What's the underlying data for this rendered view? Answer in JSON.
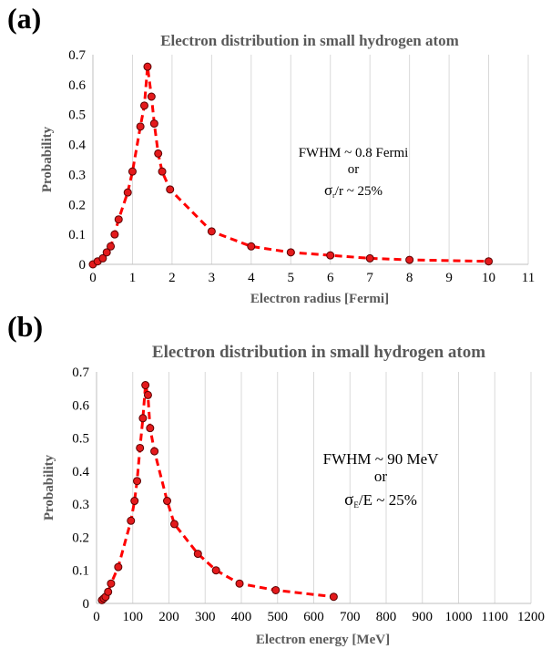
{
  "chart_data": [
    {
      "type": "scatter",
      "panel_label": "(a)",
      "title": "Electron distribution in small hydrogen atom",
      "xlabel": "Electron radius [Fermi]",
      "ylabel": "Probability",
      "xlim": [
        0,
        11
      ],
      "ylim": [
        0,
        0.7
      ],
      "xticks": [
        "0",
        "1",
        "2",
        "3",
        "4",
        "5",
        "6",
        "7",
        "8",
        "9",
        "10",
        "11"
      ],
      "yticks": [
        "0",
        "0.1",
        "0.2",
        "0.3",
        "0.4",
        "0.5",
        "0.6",
        "0.7"
      ],
      "grid": "vertical",
      "line_color": "#ff0000",
      "marker_color": "#e31a1c",
      "annotation": {
        "line1": "FWHM ~ 0.8 Fermi",
        "line2": "or",
        "line3_symbol": "σ",
        "line3_sub": "r",
        "line3_rest": "/r ~ 25%"
      },
      "series": [
        {
          "x": [
            0.0,
            0.12,
            0.25,
            0.35,
            0.45,
            0.55,
            0.65,
            0.88,
            1.0,
            1.2,
            1.3,
            1.38,
            1.48,
            1.55,
            1.65,
            1.75,
            1.95,
            3.0,
            4.0,
            5.0,
            6.0,
            7.0,
            8.0,
            10.0
          ],
          "y": [
            0.0,
            0.01,
            0.02,
            0.04,
            0.06,
            0.1,
            0.15,
            0.24,
            0.31,
            0.46,
            0.53,
            0.66,
            0.56,
            0.47,
            0.37,
            0.31,
            0.25,
            0.11,
            0.06,
            0.04,
            0.03,
            0.02,
            0.015,
            0.01
          ]
        }
      ]
    },
    {
      "type": "scatter",
      "panel_label": "(b)",
      "title": "Electron distribution in small hydrogen atom",
      "xlabel": "Electron energy [MeV]",
      "ylabel": "Probability",
      "xlim": [
        0,
        1200
      ],
      "ylim": [
        0,
        0.7
      ],
      "xticks": [
        "0",
        "100",
        "200",
        "300",
        "400",
        "500",
        "600",
        "700",
        "800",
        "900",
        "1000",
        "1100",
        "1200"
      ],
      "yticks": [
        "0",
        "0.1",
        "0.2",
        "0.3",
        "0.4",
        "0.5",
        "0.6",
        "0.7"
      ],
      "grid": "vertical",
      "line_color": "#ff0000",
      "marker_color": "#e31a1c",
      "annotation": {
        "line1": "FWHM ~ 90 MeV",
        "line2": "or",
        "line3_symbol": "σ",
        "line3_sub": "E",
        "line3_rest": "/E ~ 25%"
      },
      "series": [
        {
          "x": [
            15,
            20,
            25,
            32,
            40,
            60,
            95,
            105,
            112,
            120,
            128,
            135,
            142,
            148,
            160,
            195,
            215,
            280,
            330,
            395,
            495,
            655
          ],
          "y": [
            0.01,
            0.015,
            0.02,
            0.035,
            0.06,
            0.11,
            0.25,
            0.31,
            0.37,
            0.47,
            0.56,
            0.66,
            0.63,
            0.53,
            0.46,
            0.31,
            0.24,
            0.15,
            0.1,
            0.06,
            0.04,
            0.02
          ]
        }
      ]
    }
  ]
}
